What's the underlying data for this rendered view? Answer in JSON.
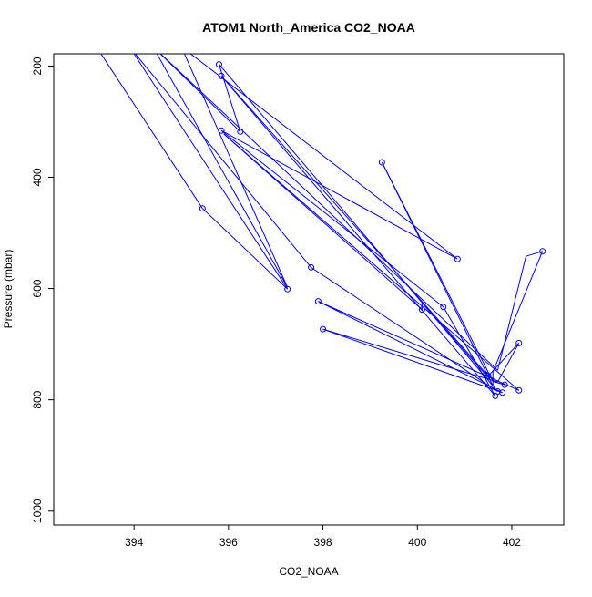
{
  "chart_data": {
    "type": "line",
    "title": "ATOM1 North_America CO2_NOAA",
    "xlabel": "CO2_NOAA",
    "ylabel": "Pressure (mbar)",
    "xlim": [
      392.3,
      403.1
    ],
    "ylim": [
      1025,
      178
    ],
    "y_reversed": true,
    "xticks": [
      394,
      396,
      398,
      400,
      402
    ],
    "yticks": [
      200,
      400,
      600,
      800,
      1000
    ],
    "grid": false,
    "series": [
      {
        "color": "#0000ff",
        "marker": "open-circle",
        "points": [
          {
            "x": 393.2,
            "y": 165,
            "marker": false
          },
          {
            "x": 395.45,
            "y": 456,
            "marker": true
          },
          {
            "x": 397.25,
            "y": 601,
            "marker": true
          },
          {
            "x": 393.9,
            "y": 165,
            "marker": false
          },
          {
            "x": 397.75,
            "y": 562,
            "marker": true
          },
          {
            "x": 401.7,
            "y": 785,
            "marker": true
          },
          {
            "x": 395.8,
            "y": 197,
            "marker": true
          },
          {
            "x": 396.25,
            "y": 318,
            "marker": true
          },
          {
            "x": 394.4,
            "y": 165,
            "marker": false
          },
          {
            "x": 397.25,
            "y": 598,
            "marker": false
          },
          {
            "x": 395.0,
            "y": 165,
            "marker": false
          },
          {
            "x": 400.85,
            "y": 547,
            "marker": true
          },
          {
            "x": 395.85,
            "y": 316,
            "marker": true
          },
          {
            "x": 400.55,
            "y": 633,
            "marker": true
          },
          {
            "x": 401.65,
            "y": 793,
            "marker": true
          },
          {
            "x": 395.85,
            "y": 218,
            "marker": true
          },
          {
            "x": 401.5,
            "y": 757,
            "marker": true
          },
          {
            "x": 402.15,
            "y": 698,
            "marker": true
          },
          {
            "x": 401.7,
            "y": 768,
            "marker": false
          },
          {
            "x": 398.0,
            "y": 673,
            "marker": true
          },
          {
            "x": 401.8,
            "y": 787,
            "marker": true
          },
          {
            "x": 397.9,
            "y": 623,
            "marker": true
          },
          {
            "x": 402.15,
            "y": 783,
            "marker": true
          },
          {
            "x": 395.9,
            "y": 322,
            "marker": false
          },
          {
            "x": 400.1,
            "y": 638,
            "marker": true
          },
          {
            "x": 400.1,
            "y": 626,
            "marker": false
          },
          {
            "x": 401.45,
            "y": 755,
            "marker": true
          },
          {
            "x": 401.85,
            "y": 773,
            "marker": true
          },
          {
            "x": 401.6,
            "y": 767,
            "marker": false
          },
          {
            "x": 399.25,
            "y": 373,
            "marker": true
          },
          {
            "x": 401.6,
            "y": 775,
            "marker": false
          },
          {
            "x": 401.6,
            "y": 750,
            "marker": false
          },
          {
            "x": 402.65,
            "y": 533,
            "marker": true
          },
          {
            "x": 402.3,
            "y": 542,
            "marker": false
          },
          {
            "x": 401.7,
            "y": 747,
            "marker": false
          },
          {
            "x": 394.4,
            "y": 165,
            "marker": false
          }
        ]
      }
    ]
  }
}
